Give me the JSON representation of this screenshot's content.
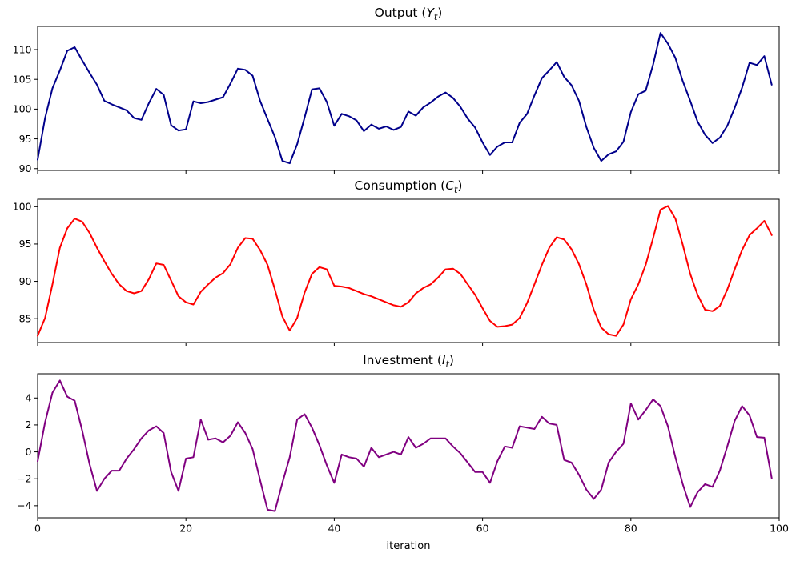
{
  "figure": {
    "background": "#ffffff",
    "xlabel": "iteration",
    "axis_color": "#000000"
  },
  "chart_data": [
    {
      "type": "line",
      "key": "output",
      "title": {
        "prefix": "Output (",
        "var": "Y",
        "sub": "t",
        "suffix": ")"
      },
      "color": "#00008b",
      "x_start": 0,
      "x_step": 1,
      "xlim": [
        0,
        100
      ],
      "ylim": [
        89.7,
        113.9
      ],
      "xticks": [
        0,
        20,
        40,
        60,
        80,
        100
      ],
      "xtick_labels": [],
      "yticks": [
        90,
        95,
        100,
        105,
        110
      ],
      "ytick_labels": [
        "90",
        "95",
        "100",
        "105",
        "110"
      ],
      "grid": false,
      "legend": "none",
      "values": [
        91.5,
        98.5,
        103.5,
        106.5,
        109.8,
        110.4,
        108.2,
        106.1,
        104.1,
        101.4,
        100.8,
        100.3,
        99.8,
        98.5,
        98.2,
        101.0,
        103.4,
        102.4,
        97.3,
        96.4,
        96.6,
        101.3,
        101.0,
        101.2,
        101.6,
        102.0,
        104.3,
        106.8,
        106.6,
        105.6,
        101.4,
        98.3,
        95.3,
        91.3,
        90.9,
        94.1,
        98.6,
        103.3,
        103.5,
        101.2,
        97.2,
        99.2,
        98.8,
        98.1,
        96.3,
        97.4,
        96.7,
        97.1,
        96.5,
        97.0,
        99.6,
        98.9,
        100.3,
        101.1,
        102.1,
        102.8,
        101.9,
        100.4,
        98.4,
        96.9,
        94.4,
        92.3,
        93.7,
        94.4,
        94.4,
        97.7,
        99.2,
        102.3,
        105.2,
        106.5,
        107.9,
        105.4,
        104.0,
        101.4,
        97.0,
        93.5,
        91.3,
        92.4,
        92.9,
        94.5,
        99.5,
        102.5,
        103.1,
        107.5,
        112.8,
        111.0,
        108.6,
        104.7,
        101.4,
        97.9,
        95.7,
        94.3,
        95.2,
        97.2,
        100.2,
        103.6,
        107.8,
        107.4,
        108.9,
        104.1
      ]
    },
    {
      "type": "line",
      "key": "consumption",
      "title": {
        "prefix": "Consumption (",
        "var": "C",
        "sub": "t",
        "suffix": ")"
      },
      "color": "#ff0000",
      "x_start": 0,
      "x_step": 1,
      "xlim": [
        0,
        100
      ],
      "ylim": [
        81.8,
        101.0
      ],
      "xticks": [
        0,
        20,
        40,
        60,
        80,
        100
      ],
      "xtick_labels": [],
      "yticks": [
        85,
        90,
        95,
        100
      ],
      "ytick_labels": [
        "85",
        "90",
        "95",
        "100"
      ],
      "grid": false,
      "legend": "none",
      "values": [
        82.7,
        85.1,
        89.6,
        94.5,
        97.1,
        98.4,
        98.0,
        96.5,
        94.5,
        92.7,
        91.0,
        89.6,
        88.7,
        88.4,
        88.7,
        90.3,
        92.4,
        92.2,
        90.1,
        88.0,
        87.2,
        86.9,
        88.6,
        89.6,
        90.5,
        91.1,
        92.3,
        94.5,
        95.8,
        95.7,
        94.2,
        92.2,
        88.9,
        85.3,
        83.4,
        85.1,
        88.5,
        91.0,
        91.9,
        91.6,
        89.4,
        89.3,
        89.1,
        88.7,
        88.3,
        88.0,
        87.6,
        87.2,
        86.8,
        86.6,
        87.2,
        88.4,
        89.1,
        89.6,
        90.5,
        91.6,
        91.7,
        91.0,
        89.6,
        88.2,
        86.4,
        84.7,
        83.9,
        84.0,
        84.2,
        85.1,
        87.1,
        89.6,
        92.2,
        94.5,
        95.9,
        95.6,
        94.3,
        92.3,
        89.6,
        86.2,
        83.8,
        82.9,
        82.7,
        84.2,
        87.6,
        89.6,
        92.2,
        95.8,
        99.6,
        100.1,
        98.4,
        94.9,
        91.0,
        88.2,
        86.2,
        86.0,
        86.7,
        88.9,
        91.6,
        94.2,
        96.2,
        97.1,
        98.1,
        96.2
      ]
    },
    {
      "type": "line",
      "key": "investment",
      "title": {
        "prefix": "Investment (",
        "var": "I",
        "sub": "t",
        "suffix": ")"
      },
      "color": "#800080",
      "x_start": 0,
      "x_step": 1,
      "xlim": [
        0,
        100
      ],
      "ylim": [
        -4.9,
        5.8
      ],
      "xticks": [
        0,
        20,
        40,
        60,
        80,
        100
      ],
      "xtick_labels": [
        "0",
        "20",
        "40",
        "60",
        "80",
        "100"
      ],
      "yticks": [
        -4,
        -2,
        0,
        2,
        4
      ],
      "ytick_labels": [
        "−4",
        "−2",
        "0",
        "2",
        "4"
      ],
      "grid": false,
      "legend": "none",
      "values": [
        -0.7,
        2.2,
        4.4,
        5.3,
        4.1,
        3.8,
        1.6,
        -0.9,
        -2.9,
        -2.0,
        -1.4,
        -1.4,
        -0.5,
        0.2,
        1.0,
        1.6,
        1.9,
        1.4,
        -1.5,
        -2.9,
        -0.5,
        -0.4,
        2.4,
        0.9,
        1.0,
        0.7,
        1.2,
        2.2,
        1.4,
        0.2,
        -2.1,
        -4.3,
        -4.4,
        -2.3,
        -0.4,
        2.4,
        2.8,
        1.8,
        0.5,
        -1.0,
        -2.3,
        -0.2,
        -0.4,
        -0.5,
        -1.1,
        0.3,
        -0.4,
        -0.2,
        0.0,
        -0.2,
        1.1,
        0.3,
        0.6,
        1.0,
        1.0,
        1.0,
        0.4,
        -0.1,
        -0.8,
        -1.5,
        -1.5,
        -2.3,
        -0.7,
        0.4,
        0.3,
        1.9,
        1.8,
        1.7,
        2.6,
        2.1,
        2.0,
        -0.6,
        -0.8,
        -1.7,
        -2.8,
        -3.5,
        -2.8,
        -0.8,
        0.0,
        0.6,
        3.6,
        2.4,
        3.1,
        3.9,
        3.4,
        1.9,
        -0.4,
        -2.4,
        -4.1,
        -3.0,
        -2.4,
        -2.6,
        -1.4,
        0.4,
        2.3,
        3.4,
        2.7,
        1.1,
        1.05,
        -1.95
      ]
    }
  ]
}
